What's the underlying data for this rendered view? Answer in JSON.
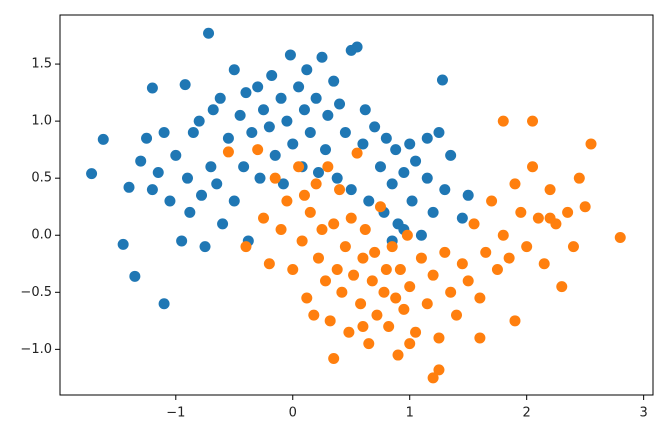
{
  "chart_data": {
    "type": "scatter",
    "xlim": [
      -1.99,
      3.08
    ],
    "ylim": [
      -1.4,
      1.93
    ],
    "xticks": [
      {
        "value": -1,
        "label": "−1"
      },
      0,
      1,
      2,
      3
    ],
    "yticks": [
      {
        "value": -1.0,
        "label": "−1.0"
      },
      {
        "value": -0.5,
        "label": "−0.5"
      },
      {
        "value": 0.0,
        "label": "0.0"
      },
      {
        "value": 0.5,
        "label": "0.5"
      },
      {
        "value": 1.0,
        "label": "1.0"
      },
      {
        "value": 1.5,
        "label": "1.5"
      }
    ],
    "grid": false,
    "series": [
      {
        "color": "#1f77b4",
        "x": [
          -1.72,
          -1.62,
          -1.45,
          -1.4,
          -1.35,
          -1.3,
          -1.25,
          -1.2,
          -1.2,
          -1.15,
          -1.1,
          -1.1,
          -1.05,
          -1.0,
          -0.95,
          -0.92,
          -0.9,
          -0.88,
          -0.85,
          -0.8,
          -0.78,
          -0.75,
          -0.72,
          -0.7,
          -0.68,
          -0.65,
          -0.62,
          -0.6,
          -0.55,
          -0.5,
          -0.5,
          -0.45,
          -0.42,
          -0.4,
          -0.38,
          -0.35,
          -0.3,
          -0.28,
          -0.25,
          -0.2,
          -0.18,
          -0.15,
          -0.1,
          -0.08,
          -0.05,
          -0.02,
          0.0,
          0.05,
          0.08,
          0.1,
          0.12,
          0.15,
          0.2,
          0.22,
          0.25,
          0.28,
          0.3,
          0.35,
          0.38,
          0.4,
          0.45,
          0.5,
          0.5,
          0.55,
          0.6,
          0.62,
          0.65,
          0.7,
          0.75,
          0.78,
          0.8,
          0.85,
          0.88,
          0.9,
          0.95,
          1.0,
          1.02,
          1.05,
          1.1,
          1.15,
          1.2,
          1.25,
          1.28,
          1.3,
          1.35,
          1.45,
          1.5,
          0.85,
          0.95,
          1.15
        ],
        "values": [
          0.54,
          0.84,
          -0.08,
          0.42,
          -0.36,
          0.65,
          0.85,
          0.4,
          1.29,
          0.55,
          -0.6,
          0.9,
          0.3,
          0.7,
          -0.05,
          1.32,
          0.5,
          0.2,
          0.9,
          1.0,
          0.35,
          -0.1,
          1.77,
          0.6,
          1.1,
          0.45,
          1.2,
          0.1,
          0.85,
          1.45,
          0.3,
          1.05,
          0.6,
          1.25,
          -0.05,
          0.9,
          1.3,
          0.5,
          1.1,
          0.95,
          1.4,
          0.7,
          1.2,
          0.45,
          1.0,
          1.58,
          0.8,
          1.3,
          0.6,
          1.1,
          1.45,
          0.9,
          1.2,
          0.55,
          1.56,
          0.75,
          1.05,
          1.35,
          0.5,
          1.15,
          0.9,
          1.62,
          0.4,
          1.65,
          0.8,
          1.1,
          0.3,
          0.95,
          0.6,
          0.2,
          0.85,
          0.45,
          0.75,
          0.1,
          0.55,
          0.8,
          0.3,
          0.65,
          0.0,
          0.5,
          0.2,
          0.9,
          1.36,
          0.4,
          0.7,
          0.15,
          0.35,
          -0.05,
          0.05,
          0.85
        ]
      },
      {
        "color": "#ff7f0e",
        "x": [
          -0.55,
          -0.4,
          -0.3,
          -0.25,
          -0.2,
          -0.15,
          -0.1,
          -0.05,
          0.0,
          0.05,
          0.08,
          0.1,
          0.12,
          0.15,
          0.18,
          0.2,
          0.22,
          0.25,
          0.28,
          0.3,
          0.32,
          0.35,
          0.38,
          0.4,
          0.42,
          0.45,
          0.48,
          0.5,
          0.52,
          0.55,
          0.58,
          0.6,
          0.62,
          0.65,
          0.68,
          0.7,
          0.72,
          0.75,
          0.78,
          0.8,
          0.82,
          0.85,
          0.88,
          0.9,
          0.92,
          0.95,
          0.98,
          1.0,
          1.05,
          1.1,
          1.15,
          1.2,
          1.25,
          1.3,
          1.35,
          1.4,
          1.45,
          1.5,
          1.55,
          1.6,
          1.65,
          1.7,
          1.75,
          1.8,
          1.85,
          1.9,
          1.95,
          2.0,
          2.05,
          2.1,
          2.15,
          2.2,
          2.25,
          2.3,
          2.35,
          2.4,
          2.45,
          2.5,
          2.55,
          2.8,
          1.8,
          2.05,
          1.9,
          1.6,
          1.2,
          1.25,
          0.35,
          0.6,
          1.0,
          2.2
        ],
        "values": [
          0.73,
          -0.1,
          0.75,
          0.15,
          -0.25,
          0.5,
          0.05,
          0.3,
          -0.3,
          0.6,
          -0.05,
          0.35,
          -0.55,
          0.2,
          -0.7,
          0.45,
          -0.2,
          0.05,
          -0.4,
          0.6,
          -0.75,
          0.1,
          -0.3,
          0.4,
          -0.5,
          -0.1,
          -0.85,
          0.15,
          -0.35,
          0.72,
          -0.6,
          -0.2,
          0.05,
          -0.95,
          -0.4,
          -0.15,
          -0.7,
          0.25,
          -0.5,
          -0.3,
          -0.8,
          -0.1,
          -0.55,
          -1.05,
          -0.3,
          -0.65,
          0.0,
          -0.45,
          -0.85,
          -0.2,
          -0.6,
          -0.35,
          -0.9,
          -0.15,
          -0.5,
          -0.7,
          -0.25,
          -0.4,
          0.1,
          -0.55,
          -0.15,
          0.3,
          -0.3,
          0.0,
          -0.2,
          0.45,
          0.2,
          -0.1,
          0.6,
          0.15,
          -0.25,
          0.4,
          0.1,
          -0.45,
          0.2,
          -0.1,
          0.5,
          0.25,
          0.8,
          -0.02,
          1.0,
          1.0,
          -0.75,
          -0.9,
          -1.25,
          -1.18,
          -1.08,
          -0.8,
          -0.95,
          0.15
        ]
      }
    ]
  }
}
